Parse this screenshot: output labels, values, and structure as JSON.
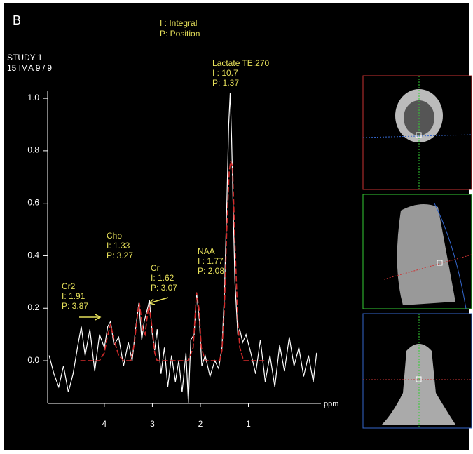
{
  "panel_label": "B",
  "legend": [
    "I : Integral",
    "P: Position"
  ],
  "study": [
    "STUDY 1",
    "15 IMA 9 / 9"
  ],
  "chart_data": {
    "type": "line",
    "xlabel": "ppm",
    "xlim": [
      5.18,
      -0.51
    ],
    "xticks": [
      4,
      3,
      2,
      1
    ],
    "ylim": [
      -0.163,
      1.027
    ],
    "yticks": [
      {
        "value": 0,
        "label": "0.0"
      },
      0.2,
      0.4,
      0.6,
      0.8,
      {
        "value": 1,
        "label": "1.0"
      }
    ],
    "annotations": [
      {
        "lines": [
          "Lactate TE:270",
          "I : 10.7",
          "P: 1.37"
        ]
      },
      {
        "lines": [
          "Cho",
          "I: 1.33",
          "P: 3.27"
        ]
      },
      {
        "lines": [
          "Cr",
          "I: 1.62",
          "P: 3.07"
        ]
      },
      {
        "lines": [
          "NAA",
          "I : 1.77",
          "P: 2.08"
        ]
      },
      {
        "lines": [
          "Cr2",
          "I: 1.91",
          "P: 3.87"
        ]
      }
    ],
    "series": [
      {
        "color": "#ffffff",
        "x": [
          5.15,
          5.05,
          4.95,
          4.85,
          4.75,
          4.65,
          4.55,
          4.48,
          4.4,
          4.3,
          4.2,
          4.1,
          4.0,
          3.93,
          3.87,
          3.8,
          3.7,
          3.6,
          3.5,
          3.42,
          3.35,
          3.28,
          3.22,
          3.17,
          3.1,
          3.06,
          3.0,
          2.95,
          2.9,
          2.82,
          2.75,
          2.68,
          2.6,
          2.52,
          2.45,
          2.38,
          2.3,
          2.25,
          2.2,
          2.13,
          2.08,
          2.02,
          1.97,
          1.9,
          1.8,
          1.7,
          1.62,
          1.55,
          1.5,
          1.45,
          1.41,
          1.38,
          1.35,
          1.32,
          1.28,
          1.22,
          1.18,
          1.12,
          1.05,
          0.95,
          0.85,
          0.75,
          0.65,
          0.55,
          0.45,
          0.35,
          0.25,
          0.15,
          0.05,
          -0.05,
          -0.15,
          -0.25,
          -0.35,
          -0.42
        ],
        "values": [
          0.02,
          -0.05,
          -0.1,
          -0.02,
          -0.12,
          -0.05,
          0.06,
          0.13,
          0.02,
          0.12,
          -0.04,
          0.1,
          0.05,
          0.13,
          0.15,
          0.06,
          0.09,
          -0.02,
          0.07,
          0.0,
          0.12,
          0.22,
          0.08,
          0.15,
          0.2,
          0.23,
          0.1,
          0.04,
          0.12,
          -0.05,
          0.05,
          -0.1,
          0.02,
          -0.08,
          0.0,
          -0.12,
          0.03,
          -0.16,
          0.08,
          0.1,
          0.26,
          0.15,
          -0.02,
          0.02,
          -0.06,
          0.0,
          -0.03,
          0.05,
          0.25,
          0.6,
          0.9,
          1.02,
          0.85,
          0.6,
          0.3,
          0.1,
          0.12,
          0.07,
          0.1,
          0.03,
          -0.05,
          0.08,
          -0.08,
          0.02,
          -0.1,
          0.06,
          -0.04,
          0.09,
          -0.02,
          0.05,
          -0.06,
          0.02,
          -0.08,
          0.03
        ]
      },
      {
        "color": "#d42a2a",
        "x": [
          4.5,
          4.1,
          4.0,
          3.95,
          3.87,
          3.8,
          3.7,
          3.6,
          3.45,
          3.38,
          3.3,
          3.27,
          3.2,
          3.15,
          3.1,
          3.07,
          3.0,
          2.95,
          2.9,
          2.25,
          2.15,
          2.1,
          2.08,
          2.03,
          1.98,
          1.9,
          1.6,
          1.55,
          1.5,
          1.45,
          1.4,
          1.37,
          1.33,
          1.28,
          1.22,
          1.18,
          1.1,
          0.65
        ],
        "values": [
          0,
          0,
          0.03,
          0.08,
          0.14,
          0.08,
          0.02,
          0,
          0,
          0.06,
          0.19,
          0.22,
          0.12,
          0.1,
          0.18,
          0.21,
          0.12,
          0.03,
          0,
          0,
          0.05,
          0.2,
          0.26,
          0.2,
          0.05,
          0,
          0,
          0.04,
          0.2,
          0.5,
          0.72,
          0.76,
          0.74,
          0.45,
          0.15,
          0.05,
          0,
          0
        ]
      }
    ]
  }
}
